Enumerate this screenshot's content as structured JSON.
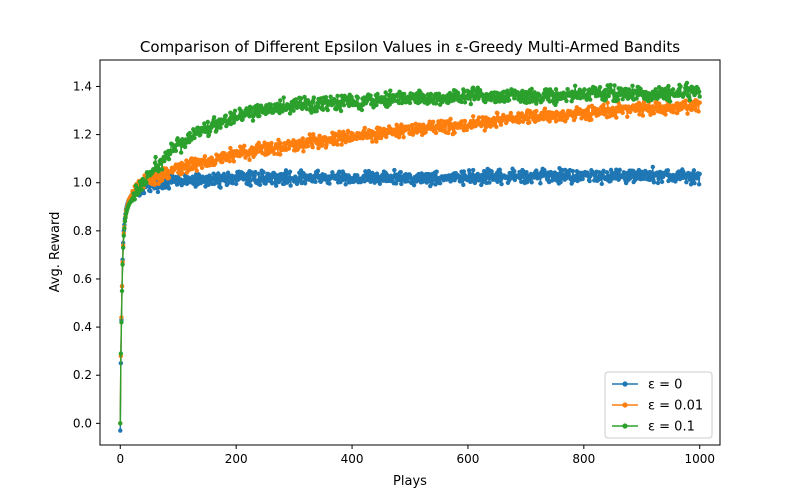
{
  "chart_data": {
    "type": "line",
    "title": "Comparison of Different Epsilon Values in ε-Greedy Multi-Armed Bandits",
    "xlabel": "Plays",
    "ylabel": "Avg. Reward",
    "xlim": [
      -35,
      1035
    ],
    "ylim": [
      -0.09,
      1.51
    ],
    "xticks": [
      0,
      200,
      400,
      600,
      800,
      1000
    ],
    "yticks": [
      0.0,
      0.2,
      0.4,
      0.6,
      0.8,
      1.0,
      1.2,
      1.4
    ],
    "xtick_labels": [
      "0",
      "200",
      "400",
      "600",
      "800",
      "1000"
    ],
    "ytick_labels": [
      "0.0",
      "0.2",
      "0.4",
      "0.6",
      "0.8",
      "1.0",
      "1.2",
      "1.4"
    ],
    "grid": false,
    "legend_position": "lower right",
    "marker": "o",
    "series": [
      {
        "name": "ε = 0",
        "color": "#1f77b4",
        "x": [
          0,
          1,
          2,
          3,
          4,
          5,
          6,
          8,
          10,
          12,
          15,
          20,
          25,
          30,
          40,
          50,
          60,
          80,
          100,
          150,
          200,
          250,
          300,
          350,
          400,
          450,
          500,
          550,
          600,
          650,
          700,
          750,
          800,
          850,
          900,
          950,
          1000
        ],
        "values": [
          -0.03,
          0.25,
          0.43,
          0.57,
          0.68,
          0.75,
          0.8,
          0.85,
          0.89,
          0.91,
          0.93,
          0.95,
          0.96,
          0.97,
          0.98,
          0.99,
          1.0,
          1.0,
          1.01,
          1.01,
          1.02,
          1.02,
          1.02,
          1.02,
          1.02,
          1.02,
          1.02,
          1.02,
          1.02,
          1.02,
          1.03,
          1.03,
          1.03,
          1.03,
          1.03,
          1.03,
          1.02
        ],
        "noise": 0.02
      },
      {
        "name": "ε = 0.01",
        "color": "#ff7f0e",
        "x": [
          0,
          1,
          2,
          3,
          4,
          5,
          6,
          8,
          10,
          12,
          15,
          20,
          25,
          30,
          40,
          50,
          60,
          80,
          100,
          150,
          200,
          250,
          300,
          350,
          400,
          450,
          500,
          550,
          600,
          650,
          700,
          750,
          800,
          850,
          900,
          950,
          1000
        ],
        "values": [
          0.0,
          0.28,
          0.44,
          0.57,
          0.67,
          0.74,
          0.79,
          0.84,
          0.88,
          0.9,
          0.93,
          0.95,
          0.97,
          0.98,
          1.0,
          1.01,
          1.02,
          1.04,
          1.06,
          1.09,
          1.12,
          1.14,
          1.16,
          1.18,
          1.19,
          1.21,
          1.22,
          1.23,
          1.24,
          1.26,
          1.27,
          1.28,
          1.29,
          1.3,
          1.31,
          1.31,
          1.32
        ],
        "noise": 0.02
      },
      {
        "name": "ε = 0.1",
        "color": "#2ca02c",
        "x": [
          0,
          1,
          2,
          3,
          4,
          5,
          6,
          8,
          10,
          12,
          15,
          20,
          25,
          30,
          40,
          50,
          60,
          80,
          100,
          150,
          200,
          250,
          300,
          350,
          400,
          450,
          500,
          550,
          600,
          650,
          700,
          750,
          800,
          850,
          900,
          950,
          1000
        ],
        "values": [
          0.0,
          0.29,
          0.42,
          0.55,
          0.66,
          0.73,
          0.78,
          0.84,
          0.87,
          0.89,
          0.91,
          0.93,
          0.95,
          0.97,
          1.0,
          1.03,
          1.06,
          1.11,
          1.16,
          1.23,
          1.28,
          1.3,
          1.32,
          1.33,
          1.34,
          1.35,
          1.35,
          1.35,
          1.36,
          1.36,
          1.36,
          1.36,
          1.37,
          1.37,
          1.37,
          1.37,
          1.38
        ],
        "noise": 0.022
      }
    ]
  }
}
